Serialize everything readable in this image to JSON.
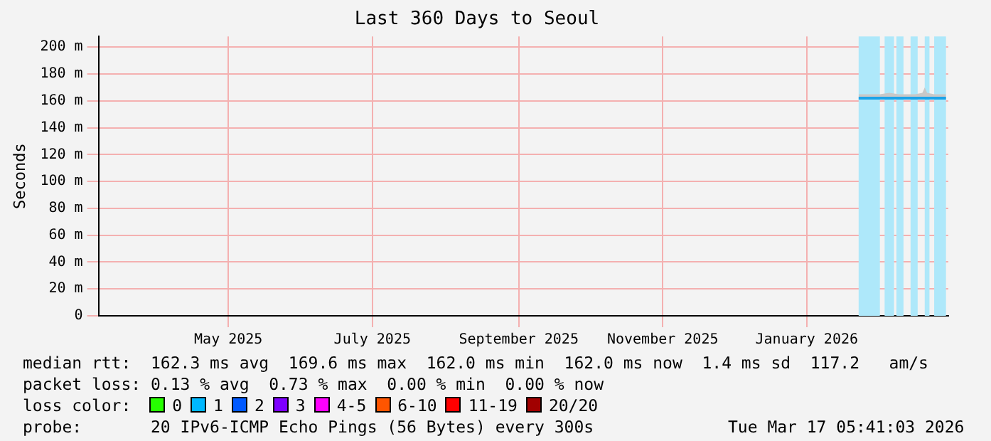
{
  "chart_data": {
    "type": "line",
    "title": "Last 360 Days to Seoul",
    "ylabel": "Seconds",
    "xlim": [
      "2025-03-22",
      "2026-03-17"
    ],
    "xticks": [
      {
        "value": "2025-05-16",
        "label": "May 2025"
      },
      {
        "value": "2025-07-16",
        "label": "July 2025"
      },
      {
        "value": "2025-09-16",
        "label": "September 2025"
      },
      {
        "value": "2025-11-16",
        "label": "November 2025"
      },
      {
        "value": "2026-01-16",
        "label": "January 2026"
      }
    ],
    "ylim": [
      0,
      208
    ],
    "yticks": [
      0,
      {
        "value": 20,
        "label": "20 m"
      },
      {
        "value": 40,
        "label": "40 m"
      },
      {
        "value": 60,
        "label": "60 m"
      },
      {
        "value": 80,
        "label": "80 m"
      },
      {
        "value": 100,
        "label": "100 m"
      },
      {
        "value": 120,
        "label": "120 m"
      },
      {
        "value": 140,
        "label": "140 m"
      },
      {
        "value": 160,
        "label": "160 m"
      },
      {
        "value": 180,
        "label": "180 m"
      },
      {
        "value": 200,
        "label": "200 m"
      }
    ],
    "grid": true,
    "legend": false,
    "marker": "none",
    "line_style": "solid",
    "series": [
      {
        "color": "#1aa3e8",
        "x": [
          "2026-02-07",
          "2026-02-12",
          "2026-02-16",
          "2026-02-20",
          "2026-02-24",
          "2026-02-28",
          "2026-03-03",
          "2026-03-06",
          "2026-03-07",
          "2026-03-08",
          "2026-03-11",
          "2026-03-14",
          "2026-03-16"
        ],
        "values": [
          162,
          162,
          162,
          162,
          162,
          162,
          162,
          162,
          162,
          162,
          162,
          162,
          162
        ],
        "lower": [
          161,
          161,
          161,
          161,
          161,
          161,
          161,
          161,
          161,
          161,
          161,
          161,
          161
        ],
        "upper": [
          165,
          165,
          165,
          166,
          165,
          165,
          165,
          166,
          170,
          166,
          165,
          165,
          165
        ]
      }
    ],
    "bands": [
      {
        "axis": "x",
        "from": "2026-02-07",
        "to": "2026-02-16",
        "color": "#aee8fa"
      },
      {
        "axis": "x",
        "from": "2026-02-18",
        "to": "2026-02-22",
        "color": "#aee8fa"
      },
      {
        "axis": "x",
        "from": "2026-02-23",
        "to": "2026-02-26",
        "color": "#aee8fa"
      },
      {
        "axis": "x",
        "from": "2026-03-01",
        "to": "2026-03-04",
        "color": "#aee8fa"
      },
      {
        "axis": "x",
        "from": "2026-03-07",
        "to": "2026-03-09",
        "color": "#aee8fa"
      },
      {
        "axis": "x",
        "from": "2026-03-11",
        "to": "2026-03-16",
        "color": "#aee8fa"
      }
    ],
    "annotations": [
      "median rtt:  162.3 ms avg  169.6 ms max  162.0 ms min  162.0 ms now  1.4 ms sd  117.2   am/s",
      "packet loss: 0.13 % avg  0.73 % max  0.00 % min  0.00 % now",
      "loss color:",
      "0",
      "1",
      "2",
      "3",
      "4-5",
      "6-10",
      "11-19",
      "20/20",
      "probe:       20 IPv6-ICMP Echo Pings (56 Bytes) every 300s",
      "Tue Mar 17 05:41:03 2026"
    ]
  }
}
